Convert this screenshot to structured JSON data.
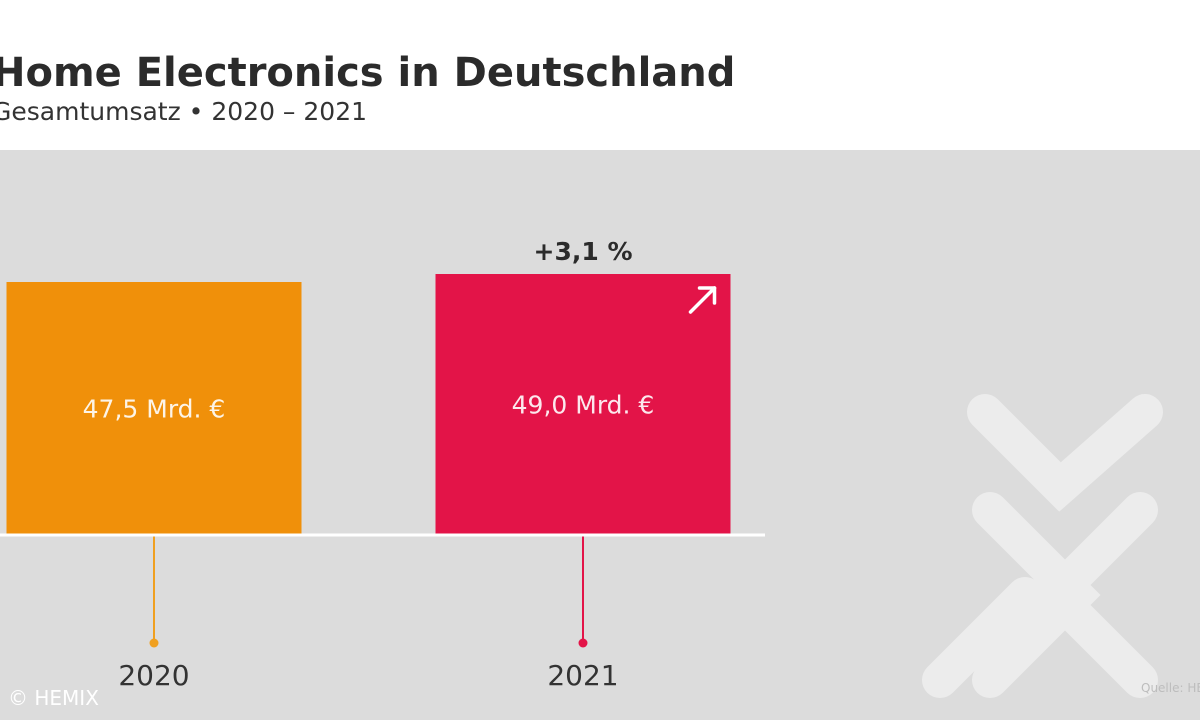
{
  "header": {
    "title": "Home Electronics in Deutschland",
    "subtitle": "Gesamtumsatz • 2020 – 2021"
  },
  "chart_data": {
    "type": "bar",
    "title": "Home Electronics in Deutschland",
    "subtitle": "Gesamtumsatz • 2020 – 2021",
    "categories": [
      "2020",
      "2021"
    ],
    "values": [
      47.5,
      49.0
    ],
    "unit": "Mrd. €",
    "data_labels": [
      "47,5 Mrd. €",
      "49,0 Mrd. €"
    ],
    "annotations": [
      "+3,1 %"
    ],
    "bar_colors": [
      "#f0900a",
      "#e31448"
    ],
    "accent_colors": {
      "line_2020": "#f0a020",
      "line_2021": "#e31448"
    },
    "xlabel": "",
    "ylabel": "",
    "grid": false,
    "legend": "none"
  },
  "footer": {
    "copyright": "© HEMIX",
    "source": "Quelle: HEMIX"
  },
  "colors": {
    "background_panel": "#dcdcdc",
    "title": "#2b2b2b",
    "watermark": "#ececec"
  }
}
